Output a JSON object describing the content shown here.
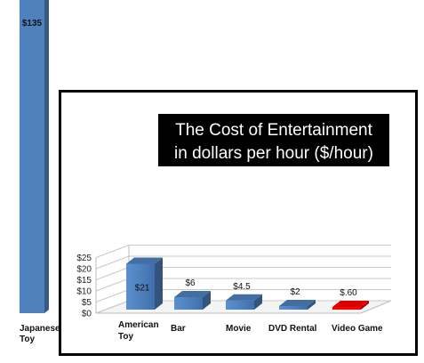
{
  "chart_data": [
    {
      "type": "bar",
      "categories": [
        "Japanese Toy"
      ],
      "values": [
        135
      ],
      "value_labels": [
        "$135"
      ],
      "category_lines": [
        [
          "Japanese",
          "Toy"
        ]
      ],
      "colors": [
        "#4F81BD"
      ]
    },
    {
      "type": "bar",
      "title_lines": [
        "The Cost of Entertainment",
        "in dollars per hour ($/hour)"
      ],
      "categories": [
        "American Toy",
        "Bar",
        "Movie",
        "DVD Rental",
        "Video Game"
      ],
      "category_lines": [
        [
          "American",
          "Toy"
        ],
        [
          "Bar"
        ],
        [
          "Movie"
        ],
        [
          "DVD Rental"
        ],
        [
          "Video Game"
        ]
      ],
      "values": [
        21,
        6,
        4.5,
        2,
        0.6
      ],
      "value_labels": [
        "$21",
        "$6",
        "$4.5",
        "$2",
        "$.60"
      ],
      "colors": [
        "#4F81BD",
        "#4F81BD",
        "#4F81BD",
        "#4F81BD",
        "#FF0000"
      ],
      "ylim": [
        0,
        25
      ],
      "yticks": [
        0,
        5,
        10,
        15,
        20,
        25
      ],
      "ytick_labels": [
        "$0",
        "$5",
        "$10",
        "$15",
        "$20",
        "$25"
      ],
      "grid": true,
      "legend": false
    }
  ]
}
